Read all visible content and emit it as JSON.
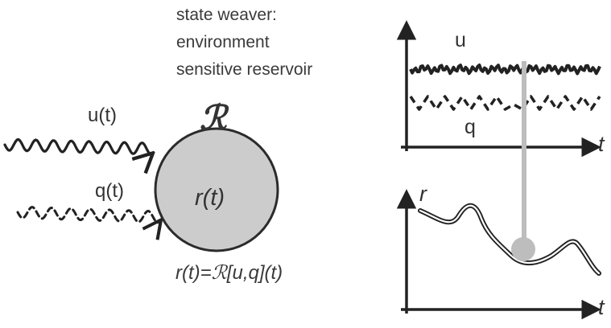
{
  "caption": {
    "line1": "state weaver:",
    "line2": "environment",
    "line3": "sensitive reservoir"
  },
  "inputs": {
    "u_label": "u(t)",
    "q_label": "q(t)"
  },
  "reservoir": {
    "symbol": "ℛ",
    "state_label": "r(t)",
    "equation": "r(t)=ℛ[u,q](t)",
    "fill_color": "#cccccc"
  },
  "top_plot": {
    "u_label": "u",
    "q_label": "q",
    "x_axis_label": "t"
  },
  "bottom_plot": {
    "y_axis_label": "r",
    "x_axis_label": "t"
  },
  "colors": {
    "ink": "#222222",
    "marker": "#bdbdbd"
  }
}
